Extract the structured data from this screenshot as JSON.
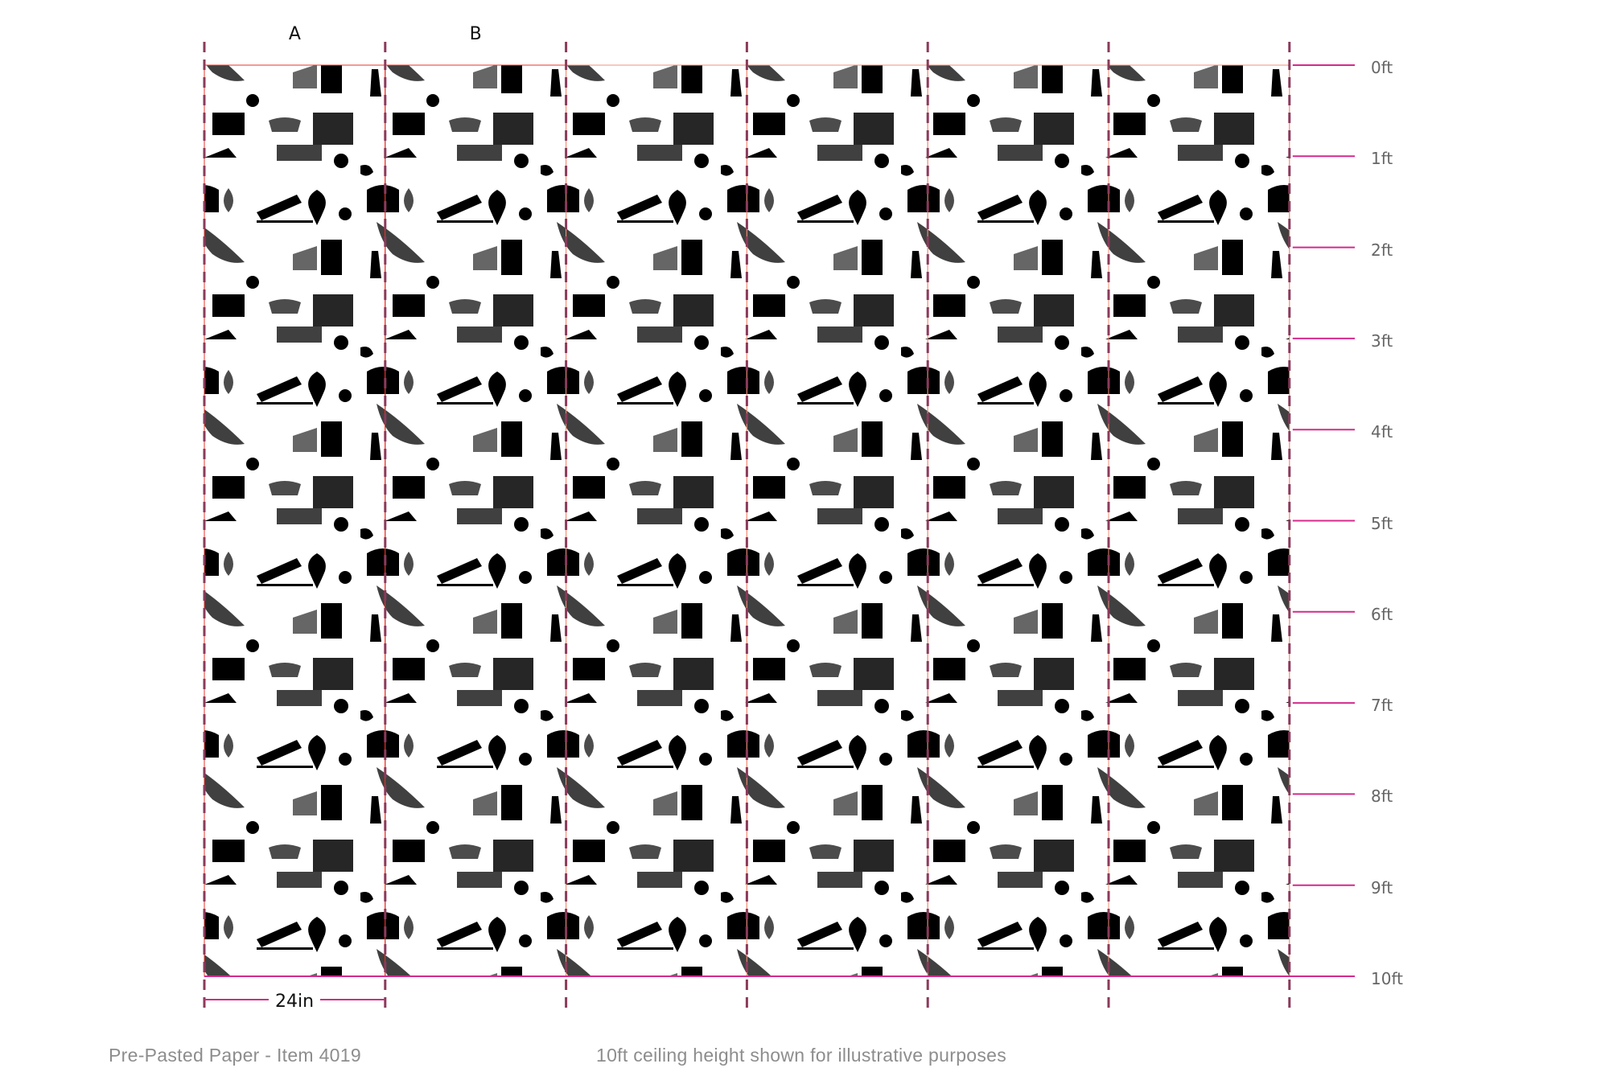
{
  "columns": [
    {
      "label": "A",
      "highlighted": true
    },
    {
      "label": "B",
      "highlighted": true
    },
    {
      "label": "",
      "highlighted": false
    },
    {
      "label": "",
      "highlighted": false
    },
    {
      "label": "",
      "highlighted": false
    },
    {
      "label": "",
      "highlighted": false
    }
  ],
  "height_marks": [
    "0ft",
    "1ft",
    "2ft",
    "3ft",
    "4ft",
    "5ft",
    "6ft",
    "7ft",
    "8ft",
    "9ft",
    "10ft"
  ],
  "panel_width_label": "24in",
  "footer": {
    "product": "Pre-Pasted Paper - Item 4019",
    "note": "10ft ceiling height shown for illustrative purposes"
  },
  "colors": {
    "pattern_strong": "#e8352b",
    "pattern_light": "#f2907a",
    "seam_line": "#8b3a5a",
    "height_line": "#d42a8c",
    "label_gray": "#666666"
  }
}
